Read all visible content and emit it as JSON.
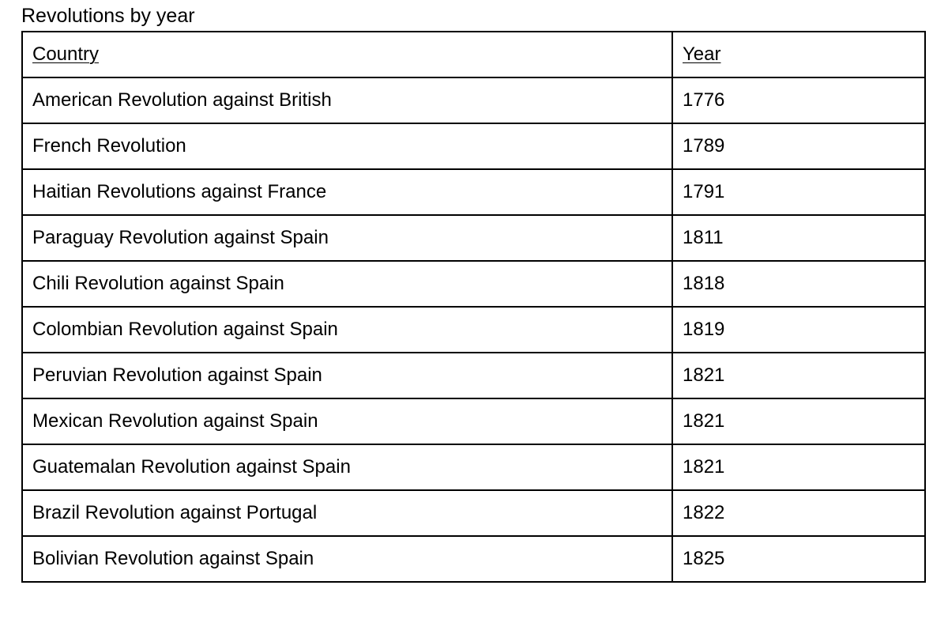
{
  "caption": "Revolutions by year",
  "table": {
    "headers": {
      "country": "Country",
      "year": "Year"
    },
    "rows": [
      {
        "country": "American Revolution against British",
        "year": "1776"
      },
      {
        "country": "French Revolution",
        "year": "1789"
      },
      {
        "country": "Haitian Revolutions against France",
        "year": "1791"
      },
      {
        "country": "Paraguay Revolution against Spain",
        "year": "1811"
      },
      {
        "country": "Chili Revolution against Spain",
        "year": "1818"
      },
      {
        "country": "Colombian Revolution against Spain",
        "year": "1819"
      },
      {
        "country": "Peruvian Revolution against Spain",
        "year": "1821"
      },
      {
        "country": "Mexican Revolution against Spain",
        "year": "1821"
      },
      {
        "country": "Guatemalan Revolution against Spain",
        "year": "1821"
      },
      {
        "country": "Brazil Revolution against Portugal",
        "year": "1822"
      },
      {
        "country": "Bolivian Revolution against Spain",
        "year": "1825"
      }
    ]
  }
}
